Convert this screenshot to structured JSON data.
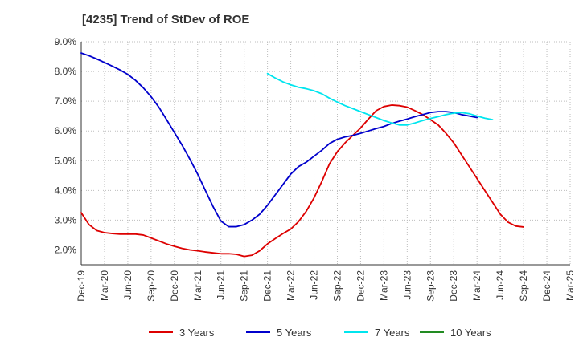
{
  "chart_data": {
    "type": "line",
    "title": "[4235]  Trend of StDev of ROE",
    "xlabel": "",
    "ylabel": "",
    "x_ticks": [
      "Dec-19",
      "Mar-20",
      "Jun-20",
      "Sep-20",
      "Dec-20",
      "Mar-21",
      "Jun-21",
      "Sep-21",
      "Dec-21",
      "Mar-22",
      "Jun-22",
      "Sep-22",
      "Dec-22",
      "Mar-23",
      "Jun-23",
      "Sep-23",
      "Dec-23",
      "Mar-24",
      "Jun-24",
      "Sep-24",
      "Dec-24",
      "Mar-25"
    ],
    "y_ticks": [
      "2.0%",
      "3.0%",
      "4.0%",
      "5.0%",
      "6.0%",
      "7.0%",
      "8.0%",
      "9.0%"
    ],
    "ylim": [
      1.5,
      9.0
    ],
    "grid": true,
    "legend_position": "bottom",
    "series": [
      {
        "name": "3 Years",
        "color": "#dd0000",
        "points": [
          [
            "Dec-19",
            3.25
          ],
          [
            "Jan-20",
            2.85
          ],
          [
            "Feb-20",
            2.65
          ],
          [
            "Mar-20",
            2.58
          ],
          [
            "Apr-20",
            2.55
          ],
          [
            "May-20",
            2.53
          ],
          [
            "Jun-20",
            2.53
          ],
          [
            "Jul-20",
            2.53
          ],
          [
            "Aug-20",
            2.5
          ],
          [
            "Sep-20",
            2.4
          ],
          [
            "Oct-20",
            2.3
          ],
          [
            "Nov-20",
            2.2
          ],
          [
            "Dec-20",
            2.12
          ],
          [
            "Jan-21",
            2.05
          ],
          [
            "Feb-21",
            2.0
          ],
          [
            "Mar-21",
            1.97
          ],
          [
            "Apr-21",
            1.93
          ],
          [
            "May-21",
            1.9
          ],
          [
            "Jun-21",
            1.87
          ],
          [
            "Jul-21",
            1.87
          ],
          [
            "Aug-21",
            1.85
          ],
          [
            "Sep-21",
            1.78
          ],
          [
            "Oct-21",
            1.82
          ],
          [
            "Nov-21",
            1.97
          ],
          [
            "Dec-21",
            2.2
          ],
          [
            "Jan-22",
            2.38
          ],
          [
            "Feb-22",
            2.55
          ],
          [
            "Mar-22",
            2.7
          ],
          [
            "Apr-22",
            2.95
          ],
          [
            "May-22",
            3.3
          ],
          [
            "Jun-22",
            3.75
          ],
          [
            "Jul-22",
            4.3
          ],
          [
            "Aug-22",
            4.9
          ],
          [
            "Sep-22",
            5.3
          ],
          [
            "Oct-22",
            5.6
          ],
          [
            "Nov-22",
            5.85
          ],
          [
            "Dec-22",
            6.1
          ],
          [
            "Jan-23",
            6.4
          ],
          [
            "Feb-23",
            6.68
          ],
          [
            "Mar-23",
            6.82
          ],
          [
            "Apr-23",
            6.87
          ],
          [
            "May-23",
            6.85
          ],
          [
            "Jun-23",
            6.8
          ],
          [
            "Jul-23",
            6.68
          ],
          [
            "Aug-23",
            6.55
          ],
          [
            "Sep-23",
            6.38
          ],
          [
            "Oct-23",
            6.2
          ],
          [
            "Nov-23",
            5.92
          ],
          [
            "Dec-23",
            5.6
          ],
          [
            "Jan-24",
            5.2
          ],
          [
            "Feb-24",
            4.8
          ],
          [
            "Mar-24",
            4.4
          ],
          [
            "Apr-24",
            4.0
          ],
          [
            "May-24",
            3.6
          ],
          [
            "Jun-24",
            3.2
          ],
          [
            "Jul-24",
            2.93
          ],
          [
            "Aug-24",
            2.8
          ],
          [
            "Sep-24",
            2.77
          ]
        ]
      },
      {
        "name": "5 Years",
        "color": "#0000cc",
        "points": [
          [
            "Dec-19",
            8.62
          ],
          [
            "Jan-20",
            8.53
          ],
          [
            "Feb-20",
            8.42
          ],
          [
            "Mar-20",
            8.3
          ],
          [
            "Apr-20",
            8.18
          ],
          [
            "May-20",
            8.05
          ],
          [
            "Jun-20",
            7.9
          ],
          [
            "Jul-20",
            7.7
          ],
          [
            "Aug-20",
            7.45
          ],
          [
            "Sep-20",
            7.15
          ],
          [
            "Oct-20",
            6.8
          ],
          [
            "Nov-20",
            6.38
          ],
          [
            "Dec-20",
            5.95
          ],
          [
            "Jan-21",
            5.52
          ],
          [
            "Feb-21",
            5.05
          ],
          [
            "Mar-21",
            4.55
          ],
          [
            "Apr-21",
            4.0
          ],
          [
            "May-21",
            3.45
          ],
          [
            "Jun-21",
            2.97
          ],
          [
            "Jul-21",
            2.78
          ],
          [
            "Aug-21",
            2.78
          ],
          [
            "Sep-21",
            2.85
          ],
          [
            "Oct-21",
            3.0
          ],
          [
            "Nov-21",
            3.2
          ],
          [
            "Dec-21",
            3.5
          ],
          [
            "Jan-22",
            3.85
          ],
          [
            "Feb-22",
            4.2
          ],
          [
            "Mar-22",
            4.55
          ],
          [
            "Apr-22",
            4.8
          ],
          [
            "May-22",
            4.95
          ],
          [
            "Jun-22",
            5.15
          ],
          [
            "Jul-22",
            5.35
          ],
          [
            "Aug-22",
            5.58
          ],
          [
            "Sep-22",
            5.72
          ],
          [
            "Oct-22",
            5.8
          ],
          [
            "Nov-22",
            5.85
          ],
          [
            "Dec-22",
            5.92
          ],
          [
            "Jan-23",
            6.0
          ],
          [
            "Feb-23",
            6.08
          ],
          [
            "Mar-23",
            6.15
          ],
          [
            "Apr-23",
            6.25
          ],
          [
            "May-23",
            6.33
          ],
          [
            "Jun-23",
            6.4
          ],
          [
            "Jul-23",
            6.48
          ],
          [
            "Aug-23",
            6.55
          ],
          [
            "Sep-23",
            6.62
          ],
          [
            "Oct-23",
            6.65
          ],
          [
            "Nov-23",
            6.65
          ],
          [
            "Dec-23",
            6.62
          ],
          [
            "Jan-24",
            6.55
          ],
          [
            "Feb-24",
            6.5
          ],
          [
            "Mar-24",
            6.45
          ]
        ]
      },
      {
        "name": "7 Years",
        "color": "#00e5ee",
        "points": [
          [
            "Dec-21",
            7.93
          ],
          [
            "Jan-22",
            7.78
          ],
          [
            "Feb-22",
            7.65
          ],
          [
            "Mar-22",
            7.55
          ],
          [
            "Apr-22",
            7.47
          ],
          [
            "May-22",
            7.42
          ],
          [
            "Jun-22",
            7.35
          ],
          [
            "Jul-22",
            7.25
          ],
          [
            "Aug-22",
            7.1
          ],
          [
            "Sep-22",
            6.97
          ],
          [
            "Oct-22",
            6.85
          ],
          [
            "Nov-22",
            6.75
          ],
          [
            "Dec-22",
            6.65
          ],
          [
            "Jan-23",
            6.55
          ],
          [
            "Feb-23",
            6.45
          ],
          [
            "Mar-23",
            6.35
          ],
          [
            "Apr-23",
            6.27
          ],
          [
            "May-23",
            6.2
          ],
          [
            "Jun-23",
            6.2
          ],
          [
            "Jul-23",
            6.27
          ],
          [
            "Aug-23",
            6.35
          ],
          [
            "Sep-23",
            6.42
          ],
          [
            "Oct-23",
            6.48
          ],
          [
            "Nov-23",
            6.55
          ],
          [
            "Dec-23",
            6.6
          ],
          [
            "Jan-24",
            6.62
          ],
          [
            "Feb-24",
            6.58
          ],
          [
            "Mar-24",
            6.5
          ],
          [
            "Apr-24",
            6.43
          ],
          [
            "May-24",
            6.38
          ]
        ]
      },
      {
        "name": "10 Years",
        "color": "#228b22",
        "points": []
      }
    ]
  }
}
